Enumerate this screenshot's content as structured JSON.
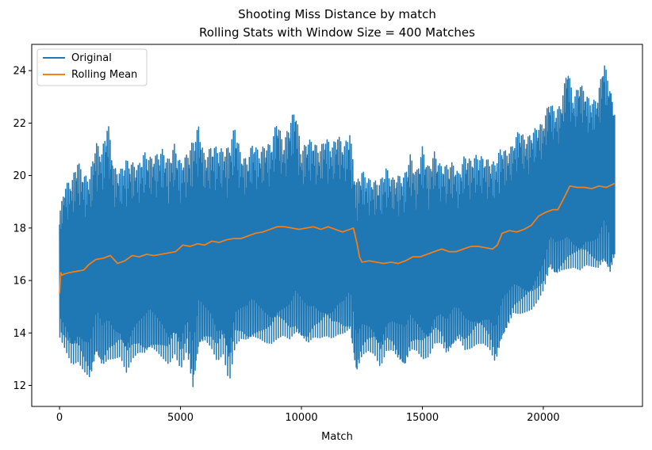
{
  "chart_data": {
    "type": "line",
    "title_line1": "Shooting Miss Distance by match",
    "title_line2": "Rolling Stats with Window Size = 400 Matches",
    "xlabel": "Match",
    "ylabel": "",
    "xlim": [
      -1150,
      24100
    ],
    "ylim": [
      11.2,
      25.0
    ],
    "x_ticks": [
      0,
      5000,
      10000,
      15000,
      20000
    ],
    "y_ticks": [
      12,
      14,
      16,
      18,
      20,
      22,
      24
    ],
    "grid": false,
    "legend_position": "top-left",
    "series": [
      {
        "name": "Original",
        "color": "#1f77b4",
        "x": [
          0,
          250,
          500,
          750,
          1000,
          1250,
          1500,
          1750,
          2000,
          2250,
          2500,
          2750,
          3000,
          3250,
          3500,
          3750,
          4000,
          4250,
          4500,
          4750,
          5000,
          5250,
          5500,
          5750,
          6000,
          6250,
          6500,
          6750,
          7000,
          7250,
          7500,
          7750,
          8000,
          8250,
          8500,
          8750,
          9000,
          9250,
          9500,
          9750,
          10000,
          10250,
          10500,
          10750,
          11000,
          11250,
          11500,
          11750,
          12000,
          12250,
          12500,
          12750,
          13000,
          13250,
          13500,
          13750,
          14000,
          14250,
          14500,
          14750,
          15000,
          15250,
          15500,
          15750,
          16000,
          16250,
          16500,
          16750,
          17000,
          17250,
          17500,
          17750,
          18000,
          18250,
          18500,
          18750,
          19000,
          19250,
          19500,
          19750,
          20000,
          20250,
          20500,
          20750,
          21000,
          21250,
          21500,
          21750,
          22000,
          22250,
          22500,
          22750,
          22950
        ],
        "upper": [
          18.6,
          19.7,
          19.8,
          20.6,
          20.0,
          20.0,
          21.3,
          20.9,
          22.1,
          20.3,
          20.2,
          20.6,
          20.5,
          20.4,
          20.9,
          20.7,
          20.8,
          21.0,
          20.6,
          21.2,
          20.5,
          20.8,
          21.3,
          21.9,
          20.7,
          21.1,
          21.1,
          21.0,
          21.1,
          21.9,
          20.8,
          20.6,
          21.3,
          20.9,
          21.2,
          21.2,
          22.2,
          21.2,
          22.0,
          22.6,
          20.9,
          21.4,
          21.3,
          21.0,
          21.5,
          21.1,
          21.6,
          21.1,
          21.7,
          19.7,
          20.2,
          19.9,
          19.8,
          19.8,
          20.3,
          19.9,
          20.0,
          20.0,
          20.8,
          20.1,
          21.1,
          20.3,
          20.9,
          20.4,
          20.4,
          20.5,
          20.1,
          20.8,
          20.6,
          20.8,
          20.7,
          20.6,
          20.5,
          21.1,
          20.9,
          21.2,
          21.8,
          21.4,
          21.6,
          21.9,
          22.0,
          22.9,
          22.4,
          22.8,
          24.2,
          22.9,
          23.6,
          23.1,
          22.8,
          23.0,
          24.4,
          23.4,
          22.3
        ],
        "lower": [
          13.8,
          13.3,
          12.8,
          12.9,
          12.5,
          12.2,
          13.1,
          12.6,
          12.9,
          13.0,
          13.1,
          12.5,
          13.0,
          13.2,
          13.1,
          13.3,
          13.2,
          13.0,
          12.8,
          13.2,
          12.6,
          13.3,
          11.8,
          13.4,
          13.6,
          13.4,
          12.9,
          13.2,
          12.1,
          13.5,
          13.7,
          13.6,
          13.7,
          13.7,
          13.6,
          13.6,
          13.8,
          13.9,
          13.7,
          13.9,
          13.7,
          13.5,
          13.8,
          13.8,
          13.9,
          13.8,
          13.9,
          13.9,
          14.0,
          12.4,
          13.1,
          13.3,
          13.2,
          12.7,
          13.3,
          13.3,
          12.9,
          12.6,
          13.3,
          13.3,
          13.0,
          13.1,
          13.6,
          13.6,
          13.1,
          13.4,
          13.7,
          13.3,
          13.4,
          13.6,
          13.6,
          13.4,
          12.8,
          13.6,
          14.1,
          14.7,
          14.7,
          14.8,
          14.9,
          15.2,
          15.6,
          16.4,
          16.1,
          16.3,
          16.4,
          16.5,
          16.4,
          16.6,
          16.5,
          16.4,
          16.6,
          16.2,
          17.0
        ]
      },
      {
        "name": "Rolling Mean",
        "color": "#ff7f0e",
        "x": [
          0,
          50,
          100,
          200,
          400,
          700,
          1000,
          1200,
          1500,
          1800,
          2100,
          2400,
          2700,
          3000,
          3300,
          3600,
          3900,
          4200,
          4500,
          4800,
          5100,
          5400,
          5700,
          6000,
          6300,
          6600,
          6900,
          7200,
          7500,
          7800,
          8100,
          8400,
          8700,
          9000,
          9300,
          9600,
          9900,
          10200,
          10500,
          10800,
          11100,
          11400,
          11700,
          12000,
          12150,
          12300,
          12400,
          12500,
          12800,
          13100,
          13400,
          13700,
          14000,
          14300,
          14600,
          14900,
          15200,
          15500,
          15800,
          16100,
          16400,
          16700,
          17000,
          17300,
          17600,
          17900,
          18100,
          18300,
          18600,
          18900,
          19200,
          19500,
          19800,
          20100,
          20400,
          20600,
          20800,
          21100,
          21400,
          21700,
          22000,
          22300,
          22600,
          22950
        ],
        "y": [
          15.5,
          16.3,
          16.2,
          16.25,
          16.3,
          16.35,
          16.4,
          16.6,
          16.8,
          16.85,
          16.95,
          16.65,
          16.75,
          16.95,
          16.9,
          17.0,
          16.95,
          17.0,
          17.05,
          17.1,
          17.35,
          17.3,
          17.4,
          17.35,
          17.5,
          17.45,
          17.55,
          17.6,
          17.6,
          17.7,
          17.8,
          17.85,
          17.95,
          18.05,
          18.05,
          18.0,
          17.95,
          18.0,
          18.05,
          17.95,
          18.05,
          17.95,
          17.85,
          17.95,
          18.0,
          17.4,
          16.9,
          16.7,
          16.75,
          16.7,
          16.65,
          16.7,
          16.65,
          16.75,
          16.9,
          16.9,
          17.0,
          17.1,
          17.2,
          17.1,
          17.1,
          17.2,
          17.3,
          17.3,
          17.25,
          17.2,
          17.35,
          17.8,
          17.9,
          17.85,
          17.95,
          18.1,
          18.45,
          18.6,
          18.7,
          18.7,
          19.05,
          19.6,
          19.55,
          19.55,
          19.5,
          19.6,
          19.55,
          19.7
        ]
      }
    ]
  }
}
